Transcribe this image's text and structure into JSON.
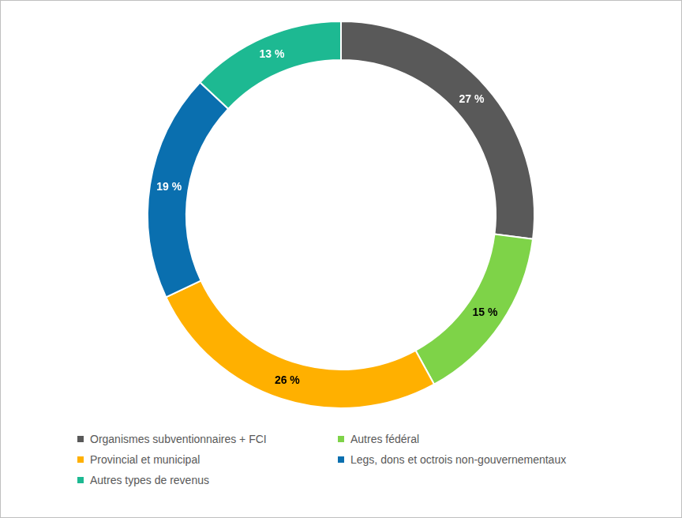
{
  "chart_data": {
    "type": "doughnut",
    "categories": [
      "Organismes subventionnaires + FCI",
      "Autres fédéral",
      "Provincial et municipal",
      "Legs, dons et octrois non-gouvernementaux",
      "Autres types de revenus"
    ],
    "values": [
      27,
      15,
      26,
      19,
      13
    ],
    "value_labels": [
      "27 %",
      "15 %",
      "26 %",
      "19 %",
      "13 %"
    ],
    "colors": [
      "#595959",
      "#7ed348",
      "#ffb000",
      "#0a6faf",
      "#1db992"
    ],
    "data_labels": true,
    "legend": "bottom"
  }
}
